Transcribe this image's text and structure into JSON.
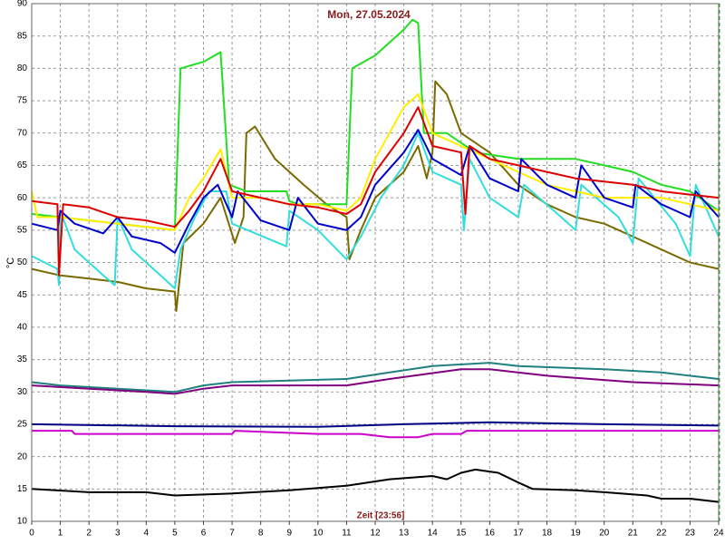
{
  "chart_data": {
    "type": "line",
    "title": "Mon, 27.05.2024",
    "xlabel": "Zeit [23:56]",
    "ylabel": "°C",
    "xlim": [
      0,
      24
    ],
    "ylim": [
      10,
      90
    ],
    "xticks": [
      0,
      1,
      2,
      3,
      4,
      5,
      6,
      7,
      8,
      9,
      10,
      11,
      12,
      13,
      14,
      15,
      16,
      17,
      18,
      19,
      20,
      21,
      22,
      23,
      24
    ],
    "yticks": [
      10,
      15,
      20,
      25,
      30,
      35,
      40,
      45,
      50,
      55,
      60,
      65,
      70,
      75,
      80,
      85,
      90
    ],
    "grid": true,
    "series": [
      {
        "color": "#7a6a00",
        "x": [
          0,
          1,
          2,
          3,
          4,
          5,
          5.05,
          5.3,
          6,
          6.6,
          7.1,
          7.4,
          7.5,
          7.8,
          8.5,
          9.5,
          10.3,
          11,
          11.1,
          11.5,
          12,
          13,
          13.5,
          13.8,
          14,
          14.1,
          14.5,
          15,
          16,
          17,
          18,
          19,
          20,
          21,
          22,
          23,
          24
        ],
        "values": [
          49,
          48,
          47.5,
          47,
          46,
          45.5,
          42.5,
          53,
          56,
          60,
          53,
          57,
          70,
          71,
          66,
          62,
          59,
          57,
          50.5,
          55,
          60,
          64,
          68,
          63,
          67,
          78,
          76,
          70,
          67,
          62,
          59,
          57,
          56,
          54,
          52,
          50,
          49
        ]
      },
      {
        "color": "#33dddd",
        "x": [
          0,
          0.9,
          0.95,
          1,
          1.5,
          2.5,
          2.9,
          3,
          3.5,
          4.5,
          5,
          5.2,
          5.7,
          6.2,
          6.8,
          7,
          8.9,
          9,
          10,
          11,
          11.5,
          12.2,
          13,
          13.5,
          14,
          15,
          15.1,
          15.3,
          16,
          17,
          17.2,
          18.5,
          19,
          19.2,
          20.5,
          21,
          21.2,
          22.5,
          23,
          23.2,
          24
        ],
        "values": [
          51,
          49,
          46.5,
          58,
          52,
          48,
          46.5,
          57,
          52,
          48,
          46,
          52,
          57,
          61,
          61,
          56,
          52.5,
          58,
          55,
          50.5,
          54,
          60,
          65,
          70,
          64,
          62,
          55,
          66,
          60,
          57,
          62,
          57,
          55,
          62,
          57,
          53,
          63,
          56,
          51,
          62,
          54
        ]
      },
      {
        "color": "#22dd22",
        "x": [
          0,
          1,
          2,
          3,
          4,
          5,
          5.2,
          6,
          6.6,
          6.9,
          7.5,
          8.9,
          9,
          9.3,
          11,
          11.2,
          12,
          13,
          13.3,
          13.5,
          13.7,
          14.5,
          15.5,
          17,
          19,
          20,
          21,
          22,
          23,
          24
        ],
        "values": [
          57.5,
          57,
          56.5,
          56,
          55.5,
          55,
          80,
          81,
          82.5,
          62,
          61,
          61,
          59.5,
          59,
          59,
          80,
          82,
          86,
          87.5,
          87,
          70,
          70,
          67,
          66,
          66,
          65,
          64,
          62,
          61,
          58
        ]
      },
      {
        "color": "#ffee00",
        "x": [
          0,
          0.2,
          1,
          2,
          4,
          5,
          5.5,
          6,
          6.6,
          7,
          8,
          9,
          10,
          11,
          11.5,
          12,
          12.5,
          13,
          13.5,
          14,
          15,
          16,
          17,
          18,
          19,
          20,
          21,
          22,
          23,
          24
        ],
        "values": [
          61,
          57,
          57,
          56.5,
          55.5,
          55,
          60,
          63,
          67.5,
          60,
          60,
          59,
          59,
          58,
          60,
          66,
          70,
          74,
          76,
          70,
          68,
          66,
          64,
          62,
          61,
          60,
          60,
          60,
          59,
          58
        ]
      },
      {
        "color": "#0000cc",
        "x": [
          0,
          0.9,
          1,
          1.5,
          2.5,
          3,
          3.5,
          4.5,
          5,
          5.5,
          6,
          6.5,
          7,
          7.2,
          8,
          9,
          9.3,
          10,
          11,
          11.5,
          12,
          13,
          13.5,
          14,
          15,
          15.3,
          16,
          17,
          17.1,
          18,
          19,
          19.2,
          20,
          21,
          21.1,
          22,
          23,
          23.2,
          24
        ],
        "values": [
          56,
          55,
          58,
          56,
          54.5,
          57,
          54,
          53,
          51.5,
          56,
          60,
          62,
          57,
          61,
          56.5,
          55,
          60,
          56,
          55,
          57,
          62,
          67,
          70.5,
          66,
          63.5,
          68,
          63,
          61,
          66,
          62,
          60,
          65,
          60,
          58.5,
          62,
          59,
          57,
          61,
          57
        ]
      },
      {
        "color": "#dd0000",
        "x": [
          0,
          0.9,
          0.95,
          1.1,
          2,
          3,
          4,
          5,
          5.5,
          6,
          6.6,
          7,
          8,
          9,
          10,
          11,
          11.5,
          12,
          13,
          13.5,
          14,
          15,
          15.15,
          15.3,
          16,
          17,
          18,
          19,
          20,
          21,
          22,
          23,
          24
        ],
        "values": [
          59.5,
          59,
          48,
          59,
          58.5,
          57,
          56.5,
          55.5,
          58,
          61,
          66,
          61,
          60,
          59,
          58.5,
          57.5,
          59,
          64,
          70,
          74,
          68,
          67,
          57.5,
          68,
          66,
          65,
          64,
          63,
          62.5,
          62,
          61,
          60.5,
          60
        ]
      },
      {
        "color": "#208080",
        "x": [
          0,
          1,
          3,
          5,
          6,
          7,
          11,
          12.5,
          14,
          16,
          17,
          20,
          22,
          24
        ],
        "values": [
          31.5,
          31,
          30.5,
          30,
          31,
          31.5,
          32,
          33,
          34,
          34.5,
          34,
          33.5,
          33,
          32
        ]
      },
      {
        "color": "#800080",
        "x": [
          0,
          2,
          4,
          5,
          6,
          7,
          11,
          12.5,
          15,
          16,
          18,
          21,
          24
        ],
        "values": [
          31,
          30.5,
          30,
          29.7,
          30.5,
          31,
          31,
          32,
          33.5,
          33.5,
          32.5,
          31.5,
          31
        ]
      },
      {
        "color": "#000080",
        "x": [
          0,
          5,
          10,
          13,
          16,
          20,
          24
        ],
        "values": [
          25,
          24.7,
          24.6,
          25,
          25.3,
          25,
          24.8
        ]
      },
      {
        "color": "#cc00cc",
        "x": [
          0,
          1.4,
          1.5,
          7,
          7.1,
          10,
          11.5,
          12.5,
          13.5,
          14,
          15,
          15.2,
          24
        ],
        "values": [
          24,
          24,
          23.5,
          23.5,
          24,
          23.5,
          23.5,
          23,
          23,
          23.5,
          23.5,
          24,
          24
        ]
      },
      {
        "color": "#000000",
        "x": [
          0,
          2,
          4,
          5,
          7,
          9,
          11,
          12.5,
          14,
          14.5,
          15,
          15.5,
          16.3,
          17,
          17.5,
          19,
          20,
          21.5,
          22,
          23,
          24
        ],
        "values": [
          15,
          14.5,
          14.5,
          14,
          14.3,
          14.8,
          15.5,
          16.5,
          17,
          16.5,
          17.5,
          18,
          17.5,
          16,
          15,
          14.8,
          14.5,
          14,
          13.5,
          13.5,
          13
        ]
      }
    ]
  }
}
